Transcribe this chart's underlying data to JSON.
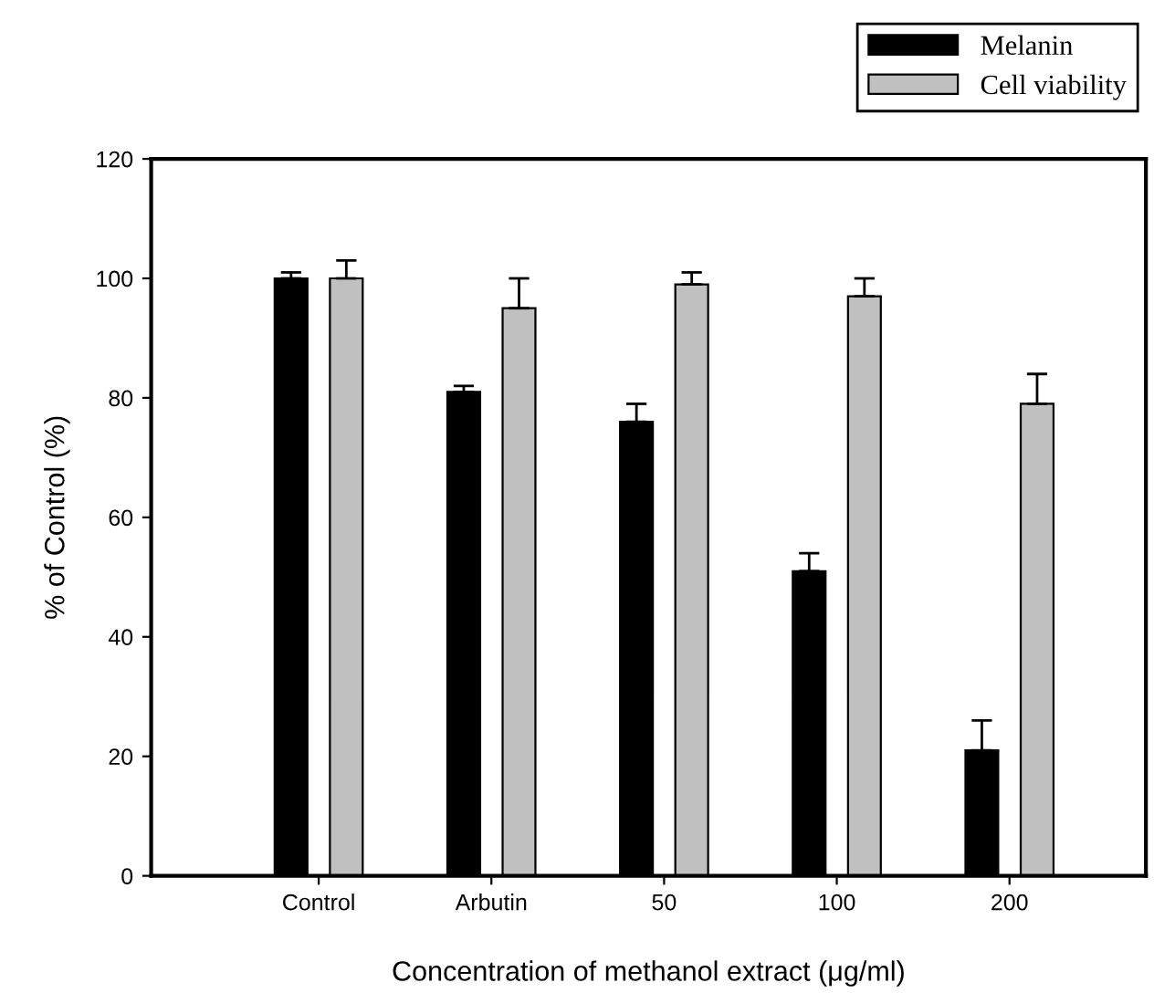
{
  "chart_data": {
    "type": "bar",
    "xlabel": "Concentration of methanol extract (μg/ml)",
    "ylabel": "% of Control (%)",
    "categories": [
      "Control",
      "Arbutin",
      "50",
      "100",
      "200"
    ],
    "series": [
      {
        "name": "Melanin",
        "color": "#000000",
        "values": [
          100,
          81,
          76,
          51,
          21
        ],
        "errors": [
          [
            100,
            101
          ],
          [
            81,
            82
          ],
          [
            76,
            79
          ],
          [
            51,
            54
          ],
          [
            21,
            26
          ]
        ]
      },
      {
        "name": "Cell viability",
        "color": "#c0c0c0",
        "values": [
          100,
          95,
          99,
          97,
          79
        ],
        "errors": [
          [
            100,
            103
          ],
          [
            95,
            100
          ],
          [
            99,
            101
          ],
          [
            97,
            100
          ],
          [
            79,
            84
          ]
        ]
      }
    ],
    "ylim": [
      0,
      120
    ],
    "yticks": [
      0,
      20,
      40,
      60,
      80,
      100,
      120
    ],
    "grid": false,
    "legend": "top right"
  }
}
